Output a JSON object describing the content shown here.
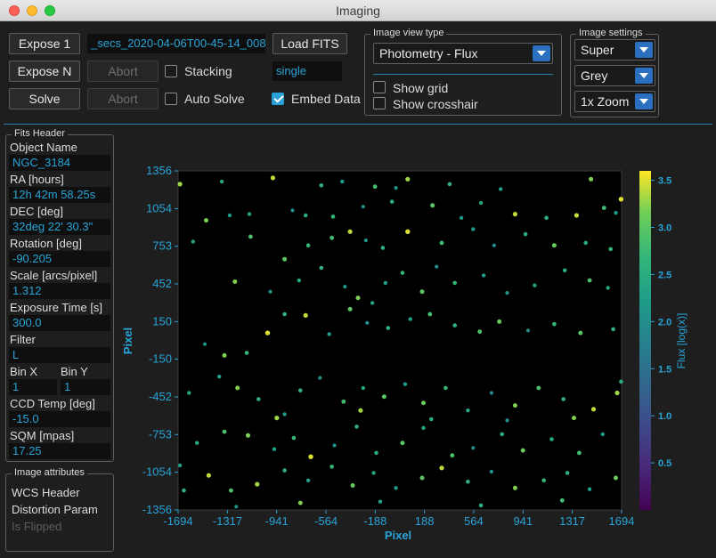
{
  "window": {
    "title": "Imaging"
  },
  "toolbar": {
    "expose1": "Expose 1",
    "exposeN": "Expose N",
    "solve": "Solve",
    "abort1": "Abort",
    "abort2": "Abort",
    "filename": "_secs_2020-04-06T00-45-14_008",
    "load_fits": "Load FITS",
    "stacking": "Stacking",
    "auto_solve": "Auto Solve",
    "mode_value": "single",
    "embed_data": "Embed Data"
  },
  "view_type": {
    "title": "Image view type",
    "selected": "Photometry - Flux",
    "show_grid": "Show grid",
    "show_crosshair": "Show crosshair"
  },
  "image_settings": {
    "title": "Image settings",
    "stretch": "Super",
    "palette": "Grey",
    "zoom": "1x Zoom"
  },
  "fits_header": {
    "title": "Fits Header",
    "object_name_label": "Object Name",
    "object_name": "NGC_3184",
    "ra_label": "RA [hours]",
    "ra": "12h 42m 58.25s",
    "dec_label": "DEC [deg]",
    "dec": "32deg 22' 30.3\"",
    "rotation_label": "Rotation [deg]",
    "rotation": "-90.205",
    "scale_label": "Scale [arcs/pixel]",
    "scale": "1.312",
    "exposure_label": "Exposure Time [s]",
    "exposure": "300.0",
    "filter_label": "Filter",
    "filter": "L",
    "binx_label": "Bin X",
    "binx": "1",
    "biny_label": "Bin Y",
    "biny": "1",
    "ccd_label": "CCD Temp [deg]",
    "ccd": "-15.0",
    "sqm_label": "SQM [mpas]",
    "sqm": "17.25"
  },
  "image_attributes": {
    "title": "Image attributes",
    "wcs": "WCS Header",
    "distortion": "Distortion Param",
    "flipped": "Is Flipped"
  },
  "chart_data": {
    "type": "scatter",
    "xlabel": "Pixel",
    "ylabel": "Pixel",
    "colorbar_label": "Flux [log(x)]",
    "xlim": [
      -1694,
      1694
    ],
    "ylim": [
      -1356,
      1356
    ],
    "xticks": [
      "-1694",
      "-1317",
      "-941",
      "-564",
      "-188",
      "188",
      "564",
      "941",
      "1317",
      "1694"
    ],
    "yticks": [
      "1356",
      "1054",
      "753",
      "452",
      "150",
      "-150",
      "-452",
      "-753",
      "-1054",
      "-1356"
    ],
    "colorbar_range": [
      0,
      3.6
    ],
    "colorbar_ticks": [
      "3.5",
      "3.0",
      "2.5",
      "2.0",
      "1.5",
      "1.0",
      "0.5"
    ],
    "grid": false,
    "colormap": "viridis",
    "points": [
      [
        -1680,
        1250,
        3.3
      ],
      [
        -1360,
        1270,
        2.4
      ],
      [
        -970,
        1300,
        3.4
      ],
      [
        -600,
        1240,
        2.6
      ],
      [
        -440,
        1270,
        2.2
      ],
      [
        -190,
        1230,
        2.8
      ],
      [
        -30,
        1220,
        2.1
      ],
      [
        60,
        1290,
        3.3
      ],
      [
        380,
        1250,
        2.6
      ],
      [
        770,
        1210,
        2.3
      ],
      [
        1460,
        1290,
        3.2
      ],
      [
        1690,
        1130,
        3.5
      ],
      [
        -1480,
        960,
        3.2
      ],
      [
        -1300,
        1000,
        2.2
      ],
      [
        -1150,
        1010,
        2.4
      ],
      [
        -820,
        1040,
        2.0
      ],
      [
        -720,
        1000,
        2.5
      ],
      [
        -510,
        990,
        2.7
      ],
      [
        -280,
        1070,
        2.0
      ],
      [
        -60,
        1110,
        2.5
      ],
      [
        250,
        1080,
        3.0
      ],
      [
        470,
        980,
        2.2
      ],
      [
        620,
        1100,
        2.4
      ],
      [
        880,
        1010,
        3.4
      ],
      [
        1120,
        980,
        2.6
      ],
      [
        1350,
        1000,
        3.4
      ],
      [
        1560,
        1060,
        2.8
      ],
      [
        1650,
        1020,
        2.2
      ],
      [
        -1580,
        790,
        2.3
      ],
      [
        -1140,
        830,
        2.9
      ],
      [
        -880,
        650,
        3.0
      ],
      [
        -700,
        760,
        2.7
      ],
      [
        -520,
        820,
        2.8
      ],
      [
        -380,
        870,
        3.4
      ],
      [
        -260,
        800,
        2.1
      ],
      [
        -130,
        740,
        2.6
      ],
      [
        60,
        870,
        3.5
      ],
      [
        320,
        780,
        2.8
      ],
      [
        560,
        890,
        2.2
      ],
      [
        720,
        760,
        2.0
      ],
      [
        960,
        850,
        2.5
      ],
      [
        1180,
        760,
        3.1
      ],
      [
        1420,
        780,
        2.5
      ],
      [
        1610,
        730,
        2.7
      ],
      [
        -1260,
        470,
        3.2
      ],
      [
        -990,
        390,
        2.1
      ],
      [
        -770,
        480,
        2.4
      ],
      [
        -600,
        580,
        2.6
      ],
      [
        -420,
        430,
        2.1
      ],
      [
        -320,
        340,
        3.2
      ],
      [
        -210,
        300,
        2.4
      ],
      [
        -110,
        460,
        2.3
      ],
      [
        20,
        540,
        2.7
      ],
      [
        170,
        390,
        3.0
      ],
      [
        280,
        590,
        2.0
      ],
      [
        420,
        460,
        2.7
      ],
      [
        640,
        520,
        2.2
      ],
      [
        820,
        380,
        2.1
      ],
      [
        1030,
        440,
        2.3
      ],
      [
        1260,
        560,
        2.5
      ],
      [
        1450,
        480,
        2.9
      ],
      [
        1590,
        420,
        2.4
      ],
      [
        -1490,
        -30,
        2.1
      ],
      [
        -1340,
        -120,
        3.2
      ],
      [
        -1170,
        -100,
        2.7
      ],
      [
        -1010,
        60,
        3.5
      ],
      [
        -880,
        210,
        2.6
      ],
      [
        -720,
        200,
        3.4
      ],
      [
        -540,
        50,
        2.2
      ],
      [
        -380,
        250,
        3.0
      ],
      [
        -250,
        140,
        2.0
      ],
      [
        -90,
        100,
        2.6
      ],
      [
        80,
        170,
        2.3
      ],
      [
        230,
        210,
        2.8
      ],
      [
        420,
        120,
        2.6
      ],
      [
        610,
        70,
        2.9
      ],
      [
        760,
        150,
        3.1
      ],
      [
        980,
        80,
        2.0
      ],
      [
        1180,
        130,
        2.7
      ],
      [
        1380,
        60,
        3.0
      ],
      [
        1630,
        90,
        2.6
      ],
      [
        -1610,
        -420,
        2.4
      ],
      [
        -1380,
        -290,
        2.3
      ],
      [
        -1240,
        -380,
        3.2
      ],
      [
        -1080,
        -470,
        2.5
      ],
      [
        -940,
        -620,
        3.3
      ],
      [
        -760,
        -400,
        2.6
      ],
      [
        -610,
        -300,
        2.0
      ],
      [
        -430,
        -490,
        2.8
      ],
      [
        -280,
        -380,
        2.4
      ],
      [
        -120,
        -450,
        3.0
      ],
      [
        40,
        -350,
        2.2
      ],
      [
        180,
        -500,
        3.1
      ],
      [
        350,
        -380,
        2.7
      ],
      [
        520,
        -560,
        2.4
      ],
      [
        700,
        -420,
        2.0
      ],
      [
        880,
        -520,
        3.2
      ],
      [
        1060,
        -380,
        2.9
      ],
      [
        1250,
        -470,
        2.6
      ],
      [
        1480,
        -550,
        3.4
      ],
      [
        1660,
        -420,
        3.3
      ],
      [
        -1550,
        -820,
        2.4
      ],
      [
        -1340,
        -730,
        2.9
      ],
      [
        -1160,
        -760,
        3.2
      ],
      [
        -960,
        -870,
        2.3
      ],
      [
        -810,
        -780,
        2.7
      ],
      [
        -680,
        -930,
        3.5
      ],
      [
        -500,
        -840,
        2.1
      ],
      [
        -330,
        -690,
        2.6
      ],
      [
        -180,
        -900,
        2.5
      ],
      [
        20,
        -820,
        3.0
      ],
      [
        180,
        -700,
        2.4
      ],
      [
        400,
        -920,
        2.9
      ],
      [
        560,
        -860,
        2.0
      ],
      [
        780,
        -750,
        2.6
      ],
      [
        940,
        -880,
        3.1
      ],
      [
        1160,
        -790,
        2.5
      ],
      [
        1370,
        -900,
        2.8
      ],
      [
        1550,
        -750,
        2.2
      ],
      [
        -1680,
        -1000,
        2.3
      ],
      [
        -1460,
        -1080,
        3.4
      ],
      [
        -1290,
        -1200,
        2.9
      ],
      [
        -1090,
        -1150,
        3.3
      ],
      [
        -880,
        -1040,
        2.5
      ],
      [
        -700,
        -1120,
        2.3
      ],
      [
        -520,
        -1010,
        2.7
      ],
      [
        -360,
        -1160,
        3.1
      ],
      [
        -200,
        -1060,
        2.4
      ],
      [
        -30,
        -1180,
        2.2
      ],
      [
        170,
        -1100,
        3.0
      ],
      [
        320,
        -1020,
        3.4
      ],
      [
        520,
        -1130,
        2.6
      ],
      [
        700,
        -1050,
        2.1
      ],
      [
        880,
        -1180,
        3.2
      ],
      [
        1100,
        -1120,
        2.7
      ],
      [
        1280,
        -1060,
        2.5
      ],
      [
        1450,
        -1190,
        2.3
      ],
      [
        1650,
        -1100,
        3.1
      ],
      [
        -1650,
        -1200,
        2.6
      ],
      [
        -1250,
        -1330,
        2.0
      ],
      [
        -760,
        -1300,
        3.2
      ],
      [
        -150,
        -1290,
        2.3
      ],
      [
        620,
        -1320,
        2.6
      ],
      [
        1240,
        -1280,
        2.8
      ],
      [
        -880,
        -590,
        2.2
      ],
      [
        -300,
        -560,
        3.3
      ],
      [
        240,
        -630,
        2.5
      ],
      [
        820,
        -640,
        2.1
      ],
      [
        1330,
        -620,
        3.2
      ],
      [
        1690,
        -330,
        2.5
      ]
    ]
  }
}
